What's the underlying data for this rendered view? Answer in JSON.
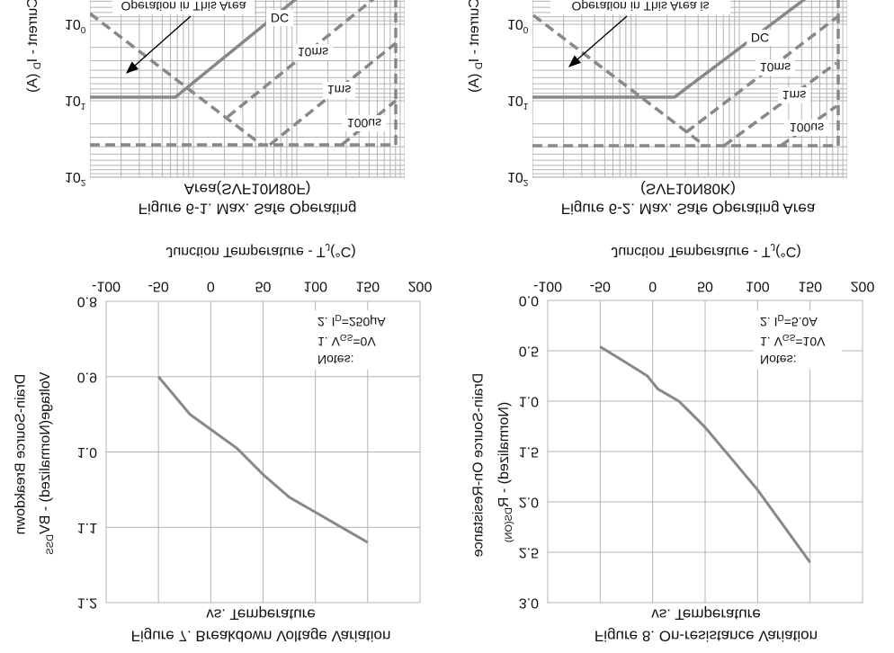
{
  "chart_data": [
    {
      "id": "figure-6-1",
      "type": "line",
      "title_line1": "Figure 6-1. Max. Safe Operating",
      "title_line2": "Area(SVF10N80F)",
      "ylabel": "Drain Current - I",
      "ylabel_sub": "D",
      "ylabel_unit": " (A)",
      "y_scale": "log",
      "y_ticks": [
        {
          "base": "10",
          "exp": "0"
        },
        {
          "base": "10",
          "exp": "1"
        },
        {
          "base": "10",
          "exp": "2"
        }
      ],
      "annotation": "Operation in This Area",
      "series_labels": [
        "DC",
        "10ms",
        "1ms",
        "100us"
      ],
      "dc_current_limit_A": 10,
      "grid": true
    },
    {
      "id": "figure-6-2",
      "type": "line",
      "title_line1": "Figure 6-2. Max. Safe Operating Area",
      "title_line2": "(SVF10N80K)",
      "ylabel": "Drain Current - I",
      "ylabel_sub": "D",
      "ylabel_unit": " (A)",
      "y_scale": "log",
      "y_ticks": [
        {
          "base": "10",
          "exp": "0"
        },
        {
          "base": "10",
          "exp": "1"
        },
        {
          "base": "10",
          "exp": "2"
        }
      ],
      "annotation": "Operation in This Area is",
      "series_labels": [
        "DC",
        "10ms",
        "1ms",
        "100us"
      ],
      "dc_current_limit_A": 10,
      "grid": true
    },
    {
      "id": "figure-7",
      "type": "line",
      "title": "Figure 7. Breakdown Voltage Variation",
      "subtitle": "vs. Temperature",
      "xlabel": "Junction Temperature  -  T",
      "xlabel_sub": "J",
      "xlabel_unit": "(°C)",
      "ylabel_line1": "Drain-Source Breakdown",
      "ylabel_line2_a": "Voltage(Normalized)  -  BV",
      "ylabel_line2_sub": "DSS",
      "xlim": [
        -100,
        200
      ],
      "ylim": [
        0.8,
        1.2
      ],
      "x_ticks": [
        "-100",
        "-50",
        "0",
        "50",
        "100",
        "150",
        "200"
      ],
      "y_ticks": [
        "0.8",
        "0.9",
        "1.0",
        "1.1",
        "1.2"
      ],
      "notes": {
        "heading": "Notes:",
        "n1_a": "1. V",
        "n1_sub": "GS",
        "n1_b": "=0V",
        "n2_a": "2. I",
        "n2_sub": "D",
        "n2_b": "=250μA"
      },
      "grid": true,
      "series": [
        {
          "name": "BVDSS",
          "x": [
            -50,
            -20,
            10,
            25,
            50,
            75,
            100,
            125,
            150
          ],
          "y": [
            0.9,
            0.95,
            0.98,
            0.995,
            1.03,
            1.06,
            1.08,
            1.1,
            1.12
          ]
        }
      ]
    },
    {
      "id": "figure-8",
      "type": "line",
      "title": "Figure 8. On-resistance Variation",
      "subtitle": "vs. Temperature",
      "xlabel": "Junction Temperature  -  T",
      "xlabel_sub": "J",
      "xlabel_unit": "(°C)",
      "ylabel_line1": "Drain-Source On-Resistance",
      "ylabel_line2_a": "(Normalized)  -  R",
      "ylabel_line2_sub": "DS(ON)",
      "xlim": [
        -100,
        200
      ],
      "ylim": [
        0.0,
        3.0
      ],
      "x_ticks": [
        "-100",
        "-50",
        "0",
        "50",
        "100",
        "150",
        "200"
      ],
      "y_ticks": [
        "0.0",
        "0.5",
        "1.0",
        "1.5",
        "2.0",
        "2.5",
        "3.0"
      ],
      "notes": {
        "heading": "Notes:",
        "n1_a": "1. V",
        "n1_sub": "GS",
        "n1_b": "=10V",
        "n2_a": "2. I",
        "n2_sub": "D",
        "n2_b": "=5.0A"
      },
      "grid": true,
      "series": [
        {
          "name": "RDS(ON)",
          "x": [
            -50,
            -25,
            -5,
            5,
            25,
            50,
            75,
            100,
            150
          ],
          "y": [
            0.46,
            0.62,
            0.75,
            0.88,
            1.0,
            1.26,
            1.57,
            1.88,
            2.6
          ]
        }
      ]
    }
  ],
  "colors": {
    "curve": "#888888",
    "grid": "#b4b4b4",
    "text": "#111111"
  }
}
